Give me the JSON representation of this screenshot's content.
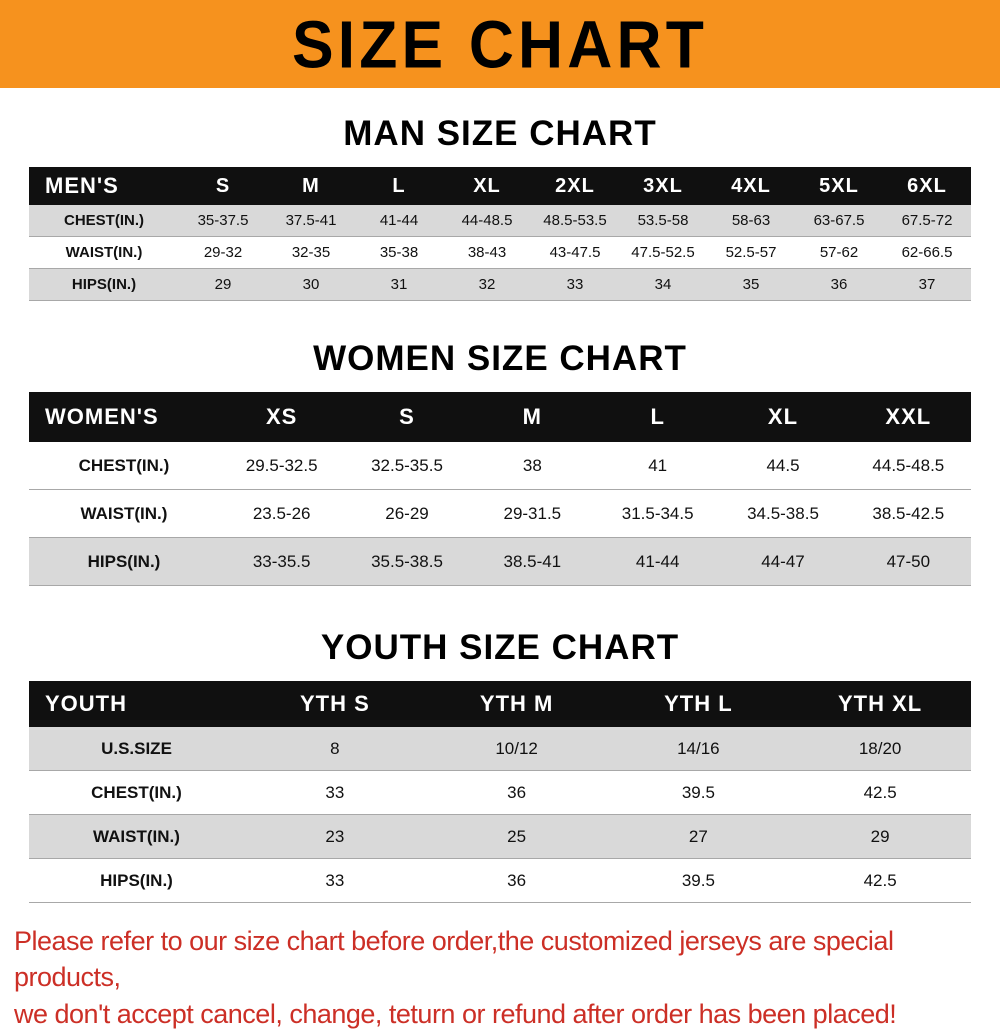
{
  "banner": {
    "title": "SIZE CHART",
    "bg_color": "#f6921e"
  },
  "sections": [
    {
      "heading": "MAN SIZE CHART",
      "table": {
        "header": [
          "MEN'S",
          "S",
          "M",
          "L",
          "XL",
          "2XL",
          "3XL",
          "4XL",
          "5XL",
          "6XL"
        ],
        "rows": [
          {
            "label": "CHEST(IN.)",
            "values": [
              "35-37.5",
              "37.5-41",
              "41-44",
              "44-48.5",
              "48.5-53.5",
              "53.5-58",
              "58-63",
              "63-67.5",
              "67.5-72"
            ]
          },
          {
            "label": "WAIST(IN.)",
            "values": [
              "29-32",
              "32-35",
              "35-38",
              "38-43",
              "43-47.5",
              "47.5-52.5",
              "52.5-57",
              "57-62",
              "62-66.5"
            ]
          },
          {
            "label": "HIPS(IN.)",
            "values": [
              "29",
              "30",
              "31",
              "32",
              "33",
              "34",
              "35",
              "36",
              "37"
            ]
          }
        ],
        "row_colors": [
          "#d9d9d9",
          "#ffffff",
          "#d9d9d9"
        ],
        "header_bg": "#101010"
      }
    },
    {
      "heading": "WOMEN SIZE CHART",
      "table": {
        "header": [
          "WOMEN'S",
          "XS",
          "S",
          "M",
          "L",
          "XL",
          "XXL"
        ],
        "rows": [
          {
            "label": "CHEST(IN.)",
            "values": [
              "29.5-32.5",
              "32.5-35.5",
              "38",
              "41",
              "44.5",
              "44.5-48.5"
            ]
          },
          {
            "label": "WAIST(IN.)",
            "values": [
              "23.5-26",
              "26-29",
              "29-31.5",
              "31.5-34.5",
              "34.5-38.5",
              "38.5-42.5"
            ]
          },
          {
            "label": "HIPS(IN.)",
            "values": [
              "33-35.5",
              "35.5-38.5",
              "38.5-41",
              "41-44",
              "44-47",
              "47-50"
            ]
          }
        ],
        "row_colors": [
          "#ffffff",
          "#ffffff",
          "#d9d9d9"
        ],
        "header_bg": "#101010"
      }
    },
    {
      "heading": "YOUTH SIZE CHART",
      "table": {
        "header": [
          "YOUTH",
          "YTH S",
          "YTH M",
          "YTH L",
          "YTH XL"
        ],
        "rows": [
          {
            "label": "U.S.SIZE",
            "values": [
              "8",
              "10/12",
              "14/16",
              "18/20"
            ]
          },
          {
            "label": "CHEST(IN.)",
            "values": [
              "33",
              "36",
              "39.5",
              "42.5"
            ]
          },
          {
            "label": "WAIST(IN.)",
            "values": [
              "23",
              "25",
              "27",
              "29"
            ]
          },
          {
            "label": "HIPS(IN.)",
            "values": [
              "33",
              "36",
              "39.5",
              "42.5"
            ]
          }
        ],
        "row_colors": [
          "#d9d9d9",
          "#ffffff",
          "#d9d9d9",
          "#ffffff"
        ],
        "header_bg": "#101010"
      }
    }
  ],
  "footer": {
    "line1": "Please refer to our size chart before order,the customized jerseys are special products,",
    "line2": "we don't accept cancel, change, teturn or refund after order has been placed!",
    "color": "#cc2f26"
  }
}
